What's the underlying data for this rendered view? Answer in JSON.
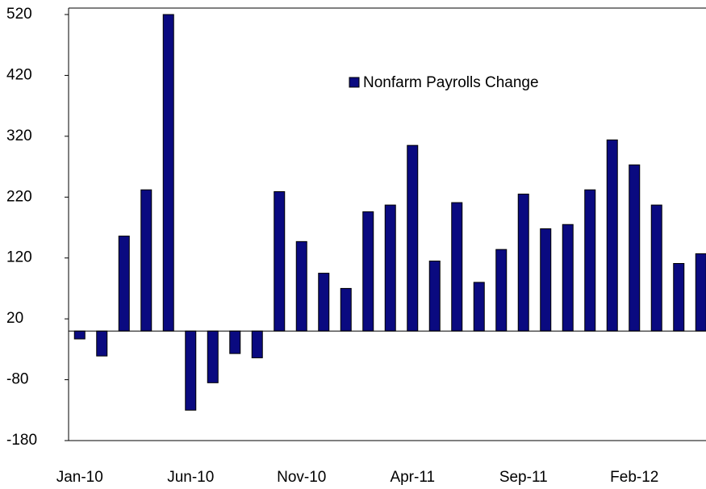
{
  "chart_data": {
    "type": "bar",
    "categories": [
      "Jan-10",
      null,
      null,
      null,
      null,
      "Jun-10",
      null,
      null,
      null,
      null,
      "Nov-10",
      null,
      null,
      null,
      null,
      "Apr-11",
      null,
      null,
      null,
      null,
      "Sep-11",
      null,
      null,
      null,
      null,
      "Feb-12",
      null,
      null,
      null
    ],
    "series": [
      {
        "name": "Nonfarm Payrolls Change",
        "color": "#0a0a80",
        "values": [
          -13,
          -41,
          156,
          232,
          520,
          -130,
          -85,
          -37,
          -44,
          229,
          147,
          95,
          70,
          196,
          207,
          305,
          115,
          211,
          80,
          134,
          225,
          168,
          175,
          232,
          314,
          273,
          207,
          111,
          127
        ]
      }
    ],
    "ylim": [
      -180,
      520
    ],
    "yticks": [
      -180,
      -80,
      20,
      120,
      220,
      320,
      420,
      520
    ],
    "legend": "top-center"
  }
}
